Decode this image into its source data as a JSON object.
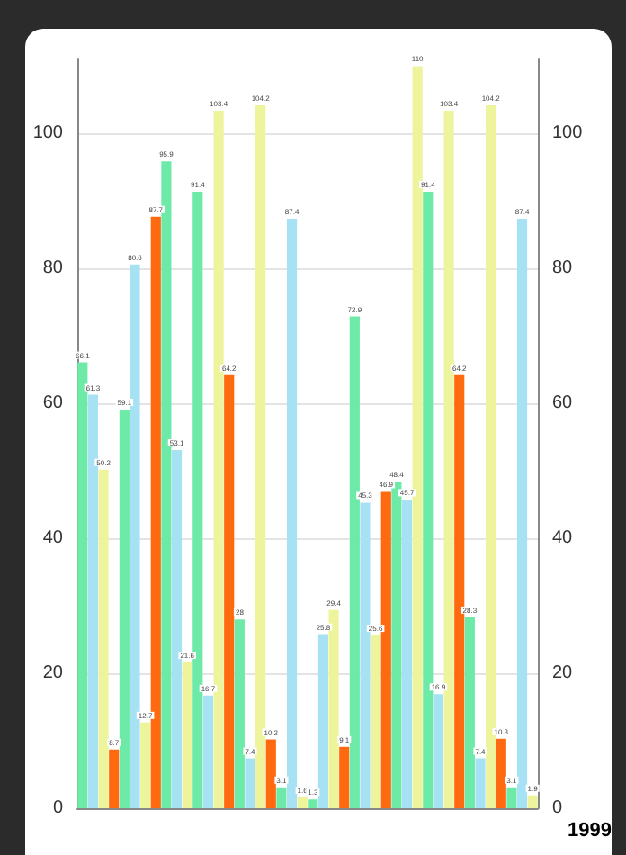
{
  "chart_data": {
    "type": "bar",
    "categories": [
      null,
      null,
      null,
      null,
      null,
      null,
      null,
      null,
      null,
      null,
      null,
      null,
      null,
      null,
      null,
      null,
      null,
      null,
      null,
      null,
      null,
      null,
      null,
      null,
      null,
      null,
      null,
      null,
      null,
      null,
      null,
      null,
      null,
      null,
      null,
      null,
      null,
      null,
      null,
      null,
      null,
      null,
      null,
      null
    ],
    "values": [
      66.1,
      61.3,
      50.2,
      8.7,
      59.1,
      80.6,
      12.7,
      87.7,
      95.9,
      53.1,
      21.6,
      91.4,
      16.7,
      103.4,
      64.2,
      28.0,
      7.4,
      104.2,
      10.2,
      3.1,
      87.4,
      1.6,
      1.3,
      25.8,
      29.4,
      9.1,
      72.9,
      45.3,
      25.6,
      46.9,
      48.4,
      45.7,
      110.0,
      91.4,
      16.9,
      103.4,
      64.2,
      28.3,
      7.4,
      104.2,
      10.3,
      3.1,
      87.4,
      1.9
    ],
    "colors": [
      "#6eeaa8",
      "#a6e2f4",
      "#eef49c",
      "#ff6a10",
      "#6eeaa8",
      "#a6e2f4",
      "#eef49c",
      "#ff6a10",
      "#6eeaa8",
      "#a6e2f4",
      "#eef49c",
      "#6eeaa8",
      "#a6e2f4",
      "#eef49c",
      "#ff6a10",
      "#6eeaa8",
      "#a6e2f4",
      "#eef49c",
      "#ff6a10",
      "#6eeaa8",
      "#a6e2f4",
      "#eef49c",
      "#6eeaa8",
      "#a6e2f4",
      "#eef49c",
      "#ff6a10",
      "#6eeaa8",
      "#a6e2f4",
      "#eef49c",
      "#ff6a10",
      "#6eeaa8",
      "#a6e2f4",
      "#eef49c",
      "#6eeaa8",
      "#a6e2f4",
      "#eef49c",
      "#ff6a10",
      "#6eeaa8",
      "#a6e2f4",
      "#eef49c",
      "#ff6a10",
      "#6eeaa8",
      "#a6e2f4",
      "#eef49c"
    ],
    "ylim": [
      0,
      111
    ],
    "yticks": [
      0,
      20,
      40,
      60,
      80,
      100
    ],
    "y2lim": [
      0,
      111
    ],
    "y2ticks": [
      0,
      20,
      40,
      60,
      80,
      100
    ],
    "grid": "y",
    "data_labels": true,
    "annotations": [
      "1999"
    ]
  }
}
